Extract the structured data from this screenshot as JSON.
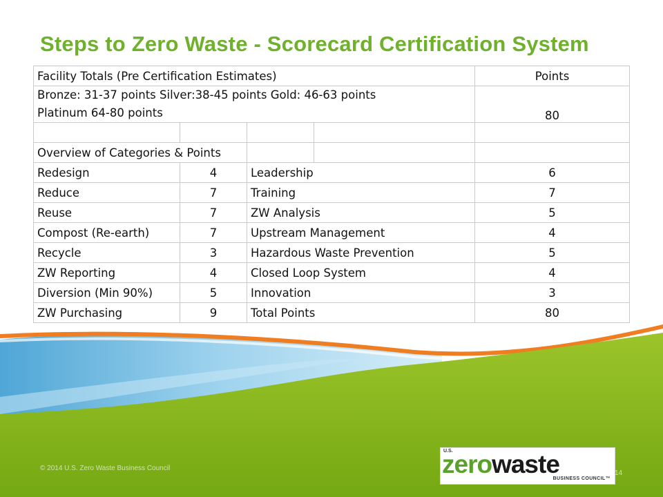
{
  "title": "Steps to Zero Waste - Scorecard Certification System",
  "facility": {
    "header_label": "Facility Totals (Pre Certification Estimates)",
    "header_points": "Points",
    "levels_line1": "Bronze: 31-37 points   Silver:38-45 points   Gold: 46-63 points",
    "levels_line2": "Platinum 64-80 points",
    "max_points": "80"
  },
  "overview_label": "Overview of Categories & Points",
  "rows": [
    {
      "left_cat": "Redesign",
      "left_pts": "4",
      "right_cat": "Leadership",
      "right_pts": "6"
    },
    {
      "left_cat": "Reduce",
      "left_pts": "7",
      "right_cat": "Training",
      "right_pts": "7"
    },
    {
      "left_cat": "Reuse",
      "left_pts": "7",
      "right_cat": "ZW Analysis",
      "right_pts": "5"
    },
    {
      "left_cat": "Compost (Re-earth)",
      "left_pts": "7",
      "right_cat": "Upstream Management",
      "right_pts": "4"
    },
    {
      "left_cat": "Recycle",
      "left_pts": "3",
      "right_cat": "Hazardous Waste Prevention",
      "right_pts": "5"
    },
    {
      "left_cat": "ZW Reporting",
      "left_pts": "4",
      "right_cat": "Closed Loop System",
      "right_pts": "4"
    },
    {
      "left_cat": "Diversion (Min 90%)",
      "left_pts": "5",
      "right_cat": "Innovation",
      "right_pts": "3"
    },
    {
      "left_cat": "ZW Purchasing",
      "left_pts": "9",
      "right_cat": "Total Points",
      "right_pts": "80"
    }
  ],
  "footer": {
    "copyright": "© 2014 U.S. Zero Waste Business Council",
    "page_number": "14"
  },
  "logo": {
    "us": "U.S.",
    "word_zero": "zero",
    "word_waste": "waste",
    "sub": "BUSINESS COUNCIL™"
  },
  "colors": {
    "title_green": "#6fb02c",
    "header_grey": "#c3c3c3",
    "category_blue": "#b9cbe6",
    "wave_green": "#84b517",
    "wave_blue": "#7ec3e6",
    "wave_orange": "#ef7d22"
  }
}
